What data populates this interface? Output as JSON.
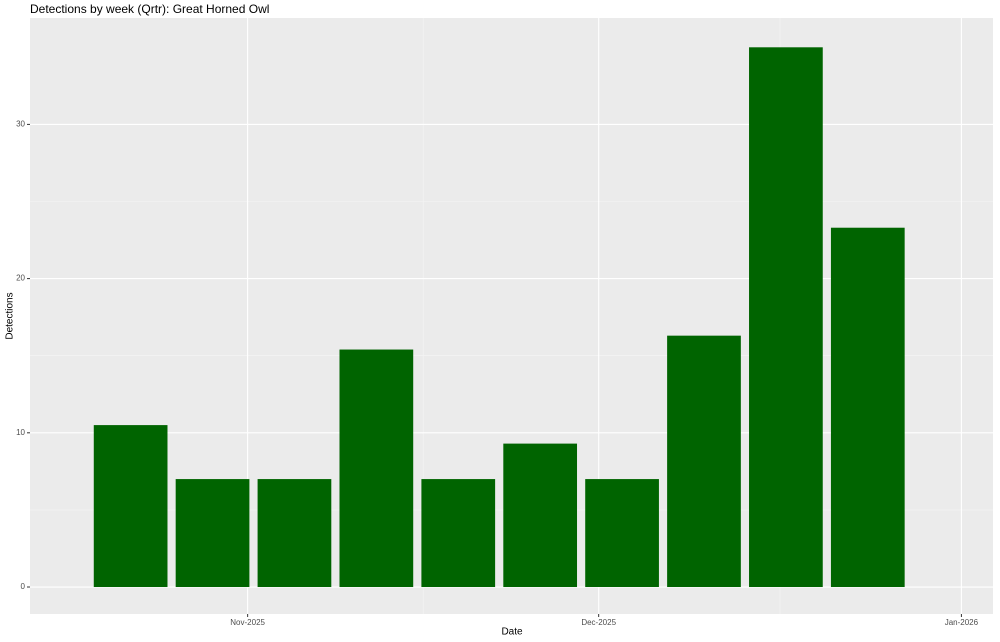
{
  "chart_data": {
    "type": "bar",
    "title": "Detections by week (Qrtr): Great Horned Owl",
    "x_label": "Date",
    "y_label": "Detections",
    "x": [
      294,
      301,
      308,
      315,
      322,
      329,
      336,
      343,
      350,
      357
    ],
    "values": [
      10.5,
      7,
      7,
      15.4,
      7,
      9.3,
      7,
      16.3,
      35,
      23.3
    ],
    "color": "#006400",
    "xlim": [
      285.4,
      367.7
    ],
    "xticks": [
      {
        "value": 304,
        "label": "Nov-2025"
      },
      {
        "value": 334,
        "label": "Dec-2025"
      },
      {
        "value": 365,
        "label": "Jan-2026"
      }
    ],
    "ylim": [
      -1.75,
      36.9
    ],
    "yticks": [
      0,
      10,
      20,
      30
    ],
    "grid": true
  }
}
